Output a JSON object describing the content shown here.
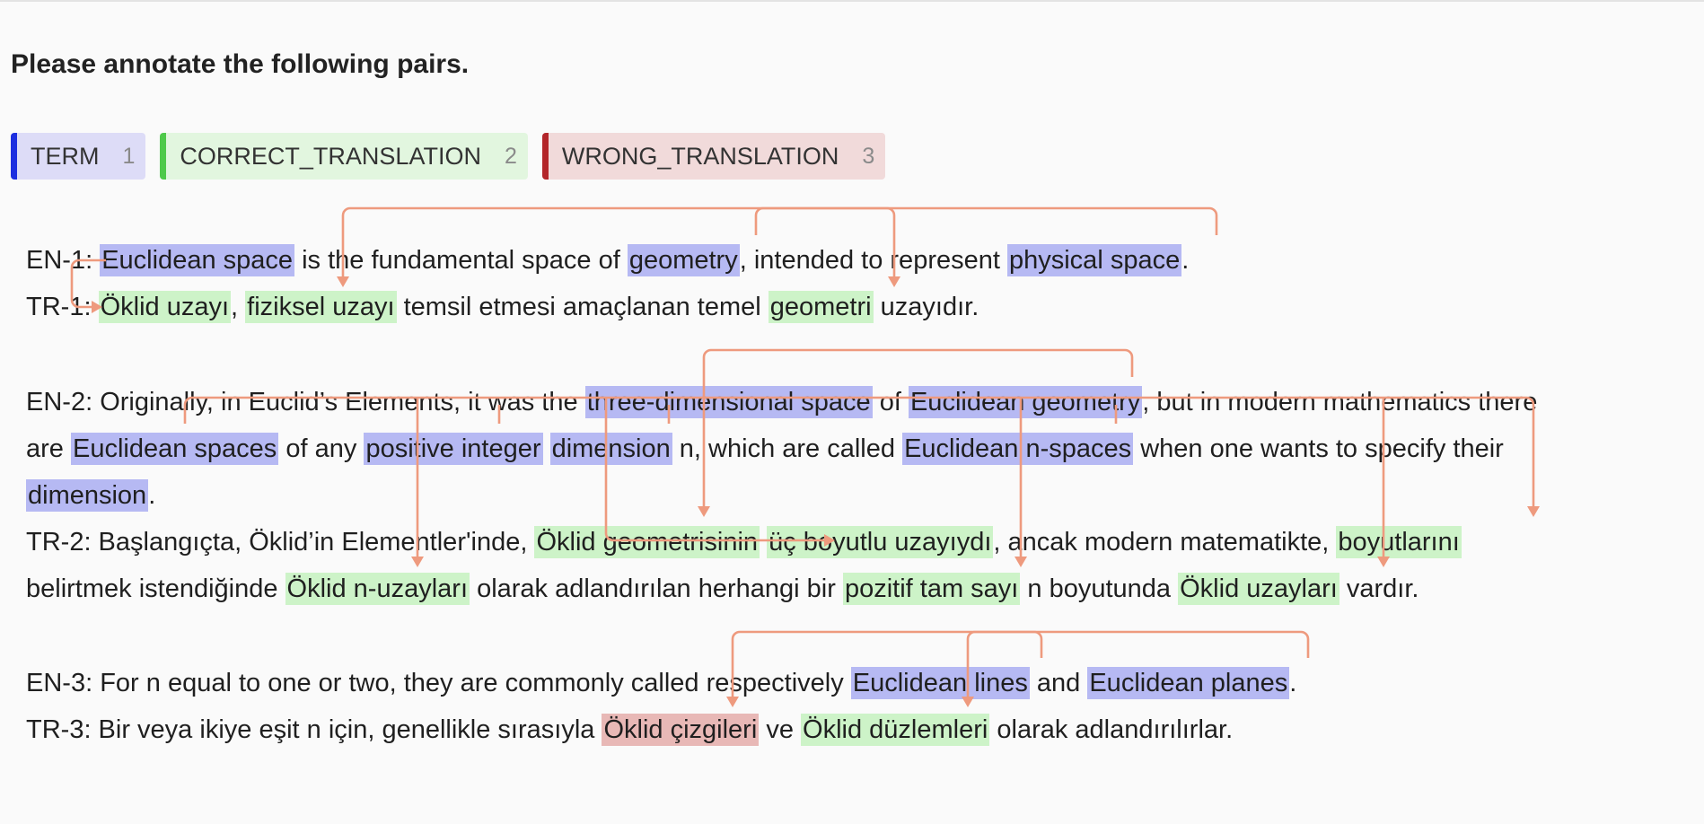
{
  "instruction": "Please annotate the following pairs.",
  "labels": [
    {
      "name": "TERM",
      "key": "1",
      "color": "#1d2fe0"
    },
    {
      "name": "CORRECT_TRANSLATION",
      "key": "2",
      "color": "#4ec94a"
    },
    {
      "name": "WRONG_TRANSLATION",
      "key": "3",
      "color": "#b3262a"
    }
  ],
  "pairs": [
    {
      "en": {
        "prefix": "EN-1:",
        "segs": [
          " ",
          "Euclidean space",
          " is the fundamental space of ",
          "geometry",
          ", intended to represent ",
          "physical space",
          "."
        ]
      },
      "tr": {
        "prefix": "TR-1:",
        "segs": [
          " ",
          "Öklid uzayı",
          ", ",
          "fiziksel uzayı",
          " temsil etmesi amaçlanan temel ",
          "geometri",
          " uzayıdır."
        ]
      }
    },
    {
      "en": {
        "prefix": "EN-2:",
        "l1": [
          " Originally, in Euclid’s Elements, it was the ",
          "three-dimensional space",
          " of ",
          "Euclidean geometry",
          ", but in modern mathematics there"
        ],
        "l2": [
          "are ",
          "Euclidean spaces",
          " of any ",
          "positive integer",
          " ",
          "dimension",
          " n, which are called ",
          "Euclidean n-spaces",
          " when one wants to specify their"
        ],
        "l3": [
          "dimension",
          "."
        ]
      },
      "tr": {
        "prefix": "TR-2:",
        "l1": [
          " Başlangıçta, Öklid’in Elementler'inde, ",
          "Öklid geometrisinin",
          " ",
          "üç boyutlu uzayıydı",
          ", ancak modern matematikte, ",
          "boyutlarını"
        ],
        "l2": [
          "belirtmek istendiğinde ",
          "Öklid n-uzayları",
          " olarak adlandırılan herhangi bir ",
          "pozitif tam sayı",
          " n boyutunda ",
          "Öklid uzayları",
          " vardır."
        ]
      }
    },
    {
      "en": {
        "prefix": "EN-3:",
        "segs": [
          " For n equal to one or two, they are commonly called respectively ",
          "Euclidean lines",
          " and ",
          "Euclidean planes",
          "."
        ]
      },
      "tr": {
        "prefix": "TR-3:",
        "segs": [
          " Bir veya ikiye eşit n için, genellikle sırasıyla ",
          "Öklid çizgileri",
          " ve ",
          "Öklid düzlemleri",
          " olarak adlandırılırlar."
        ]
      }
    }
  ],
  "colors": {
    "term": "#b6b9f3",
    "correct": "#cdf3c8",
    "wrong": "#e8b8b6",
    "arrow": "#ee9a7e"
  }
}
